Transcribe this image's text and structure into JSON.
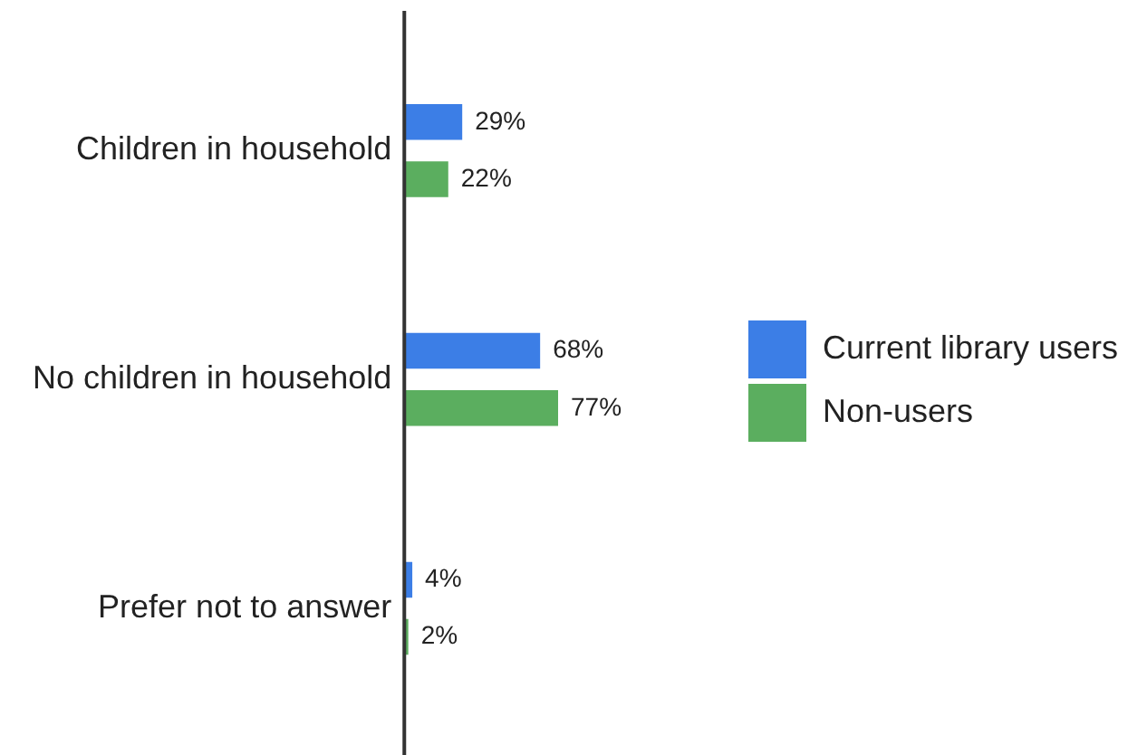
{
  "chart_data": {
    "type": "bar",
    "orientation": "horizontal",
    "categories": [
      "Children in household",
      "No children in household",
      "Prefer not to answer"
    ],
    "series": [
      {
        "name": "Current library users",
        "color": "#3c7ee6",
        "values": [
          29,
          68,
          4
        ],
        "value_labels": [
          "29%",
          "68%",
          "4%"
        ]
      },
      {
        "name": "Non-users",
        "color": "#5bae5f",
        "values": [
          22,
          77,
          2
        ],
        "value_labels": [
          "22%",
          "77%",
          "2%"
        ]
      }
    ],
    "tick_labels": "y",
    "legend": "right"
  }
}
